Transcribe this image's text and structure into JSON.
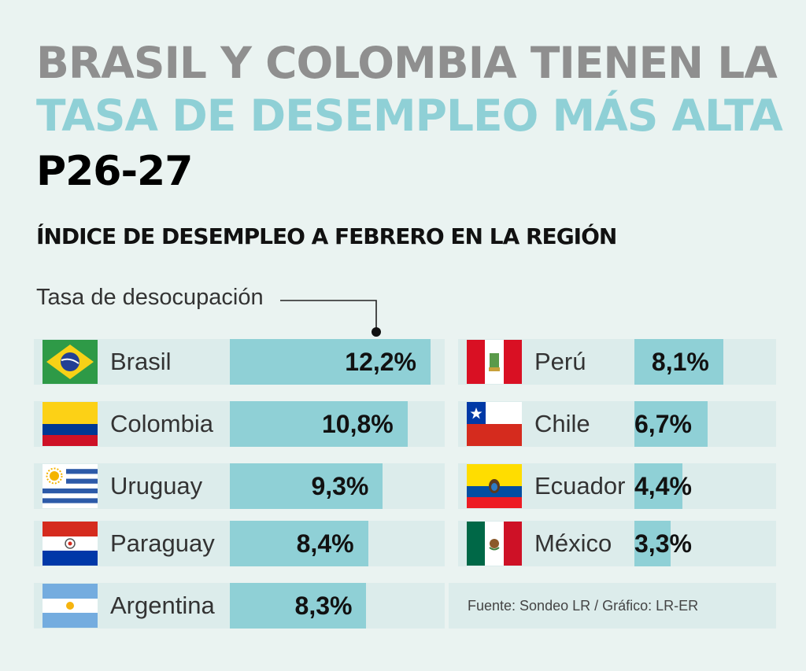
{
  "header": {
    "title_line1": "BRASIL Y COLOMBIA TIENEN LA",
    "title_line2": "TASA DE DESEMPLEO MÁS ALTA",
    "page_code": "P26-27",
    "subtitle": "ÍNDICE DE DESEMPLEO A FEBRERO EN LA REGIÓN",
    "measure_label": "Tasa de desocupación"
  },
  "source": "Fuente: Sondeo LR / Gráfico: LR-ER",
  "colors": {
    "bar": "#8fd0d6",
    "track": "#dceceb",
    "title_gray": "#8f8f8f",
    "title_teal": "#8fd0d6"
  },
  "chart_data": {
    "type": "bar",
    "orientation": "horizontal",
    "unit": "%",
    "xlim": [
      0,
      12.2
    ],
    "categories": [
      "Brasil",
      "Colombia",
      "Uruguay",
      "Paraguay",
      "Argentina",
      "Perú",
      "Chile",
      "Ecuador",
      "México"
    ],
    "values": [
      12.2,
      10.8,
      9.3,
      8.4,
      8.3,
      8.1,
      6.7,
      4.4,
      3.3
    ],
    "labels": [
      "12,2%",
      "10,8%",
      "9,3%",
      "8,4%",
      "8,3%",
      "8,1%",
      "6,7%",
      "4,4%",
      "3,3%"
    ],
    "flags": [
      "brazil-flag-icon",
      "colombia-flag-icon",
      "uruguay-flag-icon",
      "paraguay-flag-icon",
      "argentina-flag-icon",
      "peru-flag-icon",
      "chile-flag-icon",
      "ecuador-flag-icon",
      "mexico-flag-icon"
    ]
  }
}
